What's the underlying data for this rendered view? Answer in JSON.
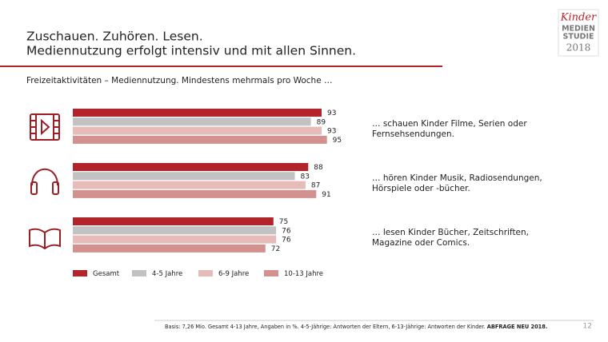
{
  "slide": {
    "logo": [
      "Kinder",
      "MEDIEN",
      "STUDIE",
      "2018"
    ],
    "page_number": 12
  },
  "chart_data": {
    "type": "bar",
    "orientation": "horizontal",
    "title": [
      "Zuschauen. Zuhören. Lesen.",
      "Mediennutzung erfolgt intensiv und mit allen Sinnen."
    ],
    "subtitle": "Freizeitaktivitäten – Mediennutzung. Mindestens mehrmals pro Woche …",
    "categories": [
      [
        "… schauen Kinder Filme, Serien oder",
        "Fernsehsendungen."
      ],
      [
        "… hören Kinder Musik, Radiosendungen,",
        "Hörspiele oder -bücher."
      ],
      [
        "… lesen Kinder Bücher, Zeitschriften,",
        "Magazine oder Comics."
      ]
    ],
    "series": [
      {
        "name": "Gesamt",
        "color": "#b3242a",
        "values": [
          93,
          88,
          75
        ]
      },
      {
        "name": "4-5 Jahre",
        "color": "#c3c2c2",
        "values": [
          89,
          83,
          76
        ]
      },
      {
        "name": "6-9 Jahre",
        "color": "#e6bcba",
        "values": [
          93,
          87,
          76
        ]
      },
      {
        "name": "10-13 Jahre",
        "color": "#d2918e",
        "values": [
          95,
          91,
          72
        ]
      }
    ],
    "legend": "bottom",
    "footnote": "Basis: 7,26 Mio. Gesamt 4-13 Jahre, Angaben in %. 4-5-Jährige: Antworten der Eltern, 6-13-Jährige: Antworten der Kinder.",
    "footnote_bold": "ABFRAGE NEU 2018."
  }
}
